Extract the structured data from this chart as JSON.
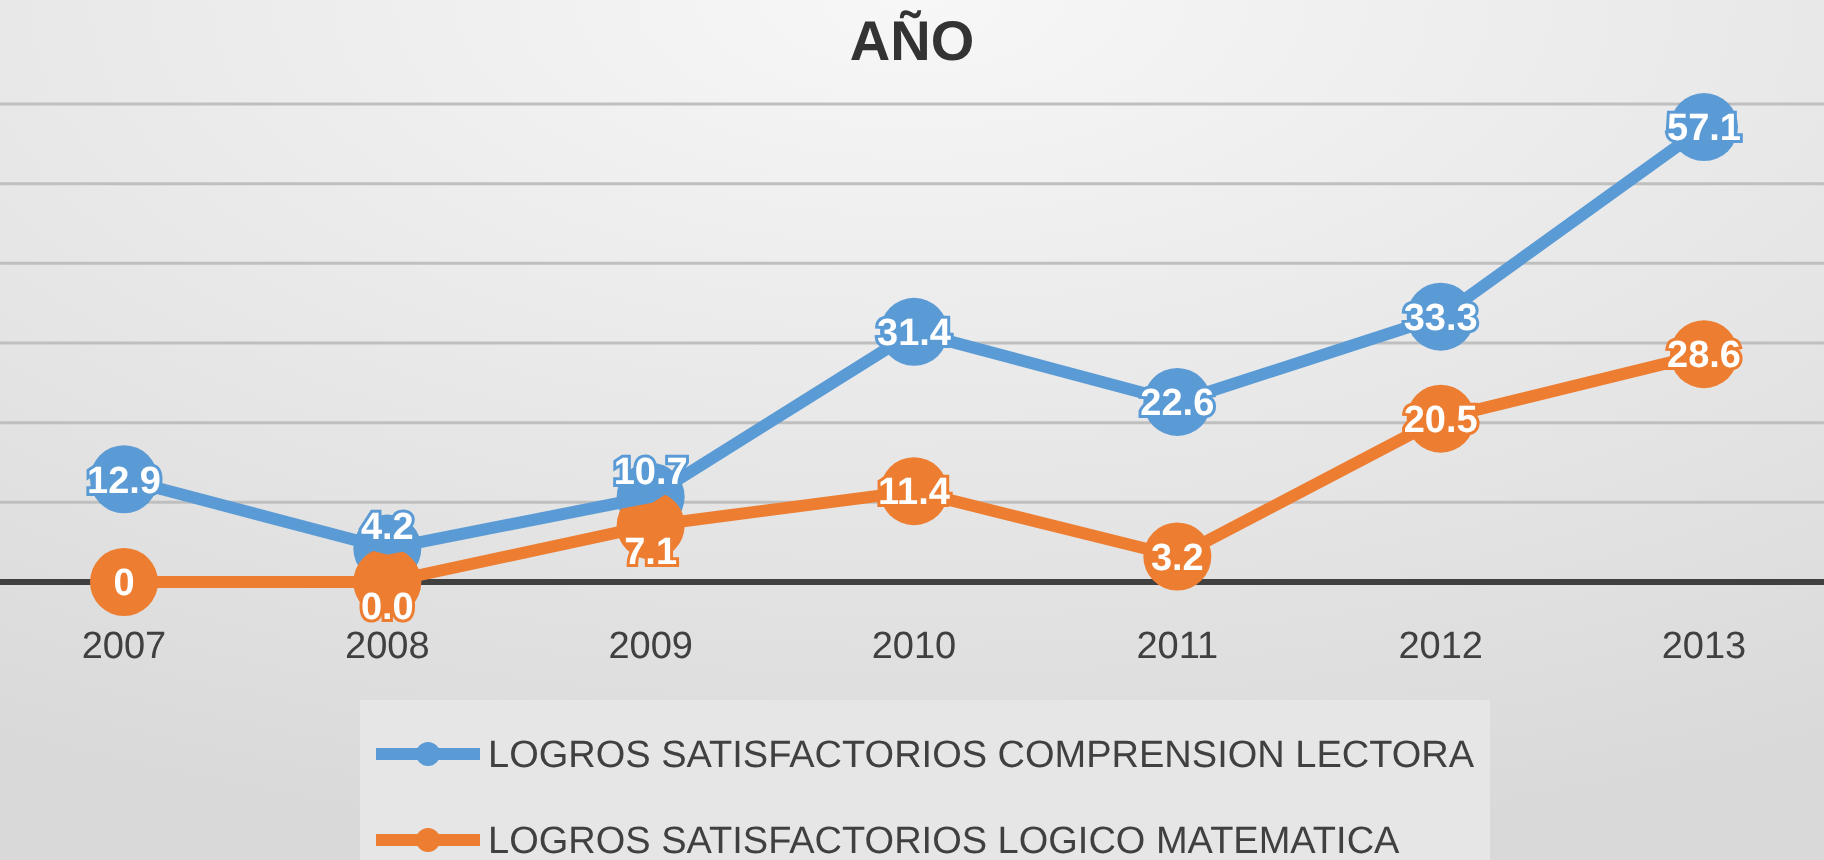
{
  "chart_data": {
    "type": "line",
    "title": "AÑO",
    "categories": [
      "2007",
      "2008",
      "2009",
      "2010",
      "2011",
      "2012",
      "2013"
    ],
    "series": [
      {
        "name": "LOGROS SATISFACTORIOS COMPRENSION LECTORA",
        "color": "#5b9bd5",
        "values": [
          12.9,
          4.2,
          10.7,
          31.4,
          22.6,
          33.3,
          57.1
        ],
        "value_labels": [
          "12.9",
          "4.2",
          "10.7",
          "31.4",
          "22.6",
          "33.3",
          "57.1"
        ]
      },
      {
        "name": "LOGROS SATISFACTORIOS LOGICO MATEMATICA",
        "color": "#ed7d31",
        "values": [
          0,
          0,
          7.1,
          11.4,
          3.2,
          20.5,
          28.6
        ],
        "value_labels": [
          "0",
          "0.0",
          "7.1",
          "11.4",
          "3.2",
          "20.5",
          "28.6"
        ]
      }
    ],
    "ylim": [
      0,
      60
    ],
    "yticks": [
      {
        "value": 0,
        "label": null
      },
      {
        "value": 10,
        "label": null
      },
      {
        "value": 20,
        "label": null
      },
      {
        "value": 30,
        "label": null
      },
      {
        "value": 40,
        "label": null
      },
      {
        "value": 50,
        "label": null
      },
      {
        "value": 60,
        "label": null
      }
    ],
    "tick_labels": "x",
    "grid": "y",
    "legend": "bottom",
    "marker": "circle",
    "line_style": "solid"
  }
}
